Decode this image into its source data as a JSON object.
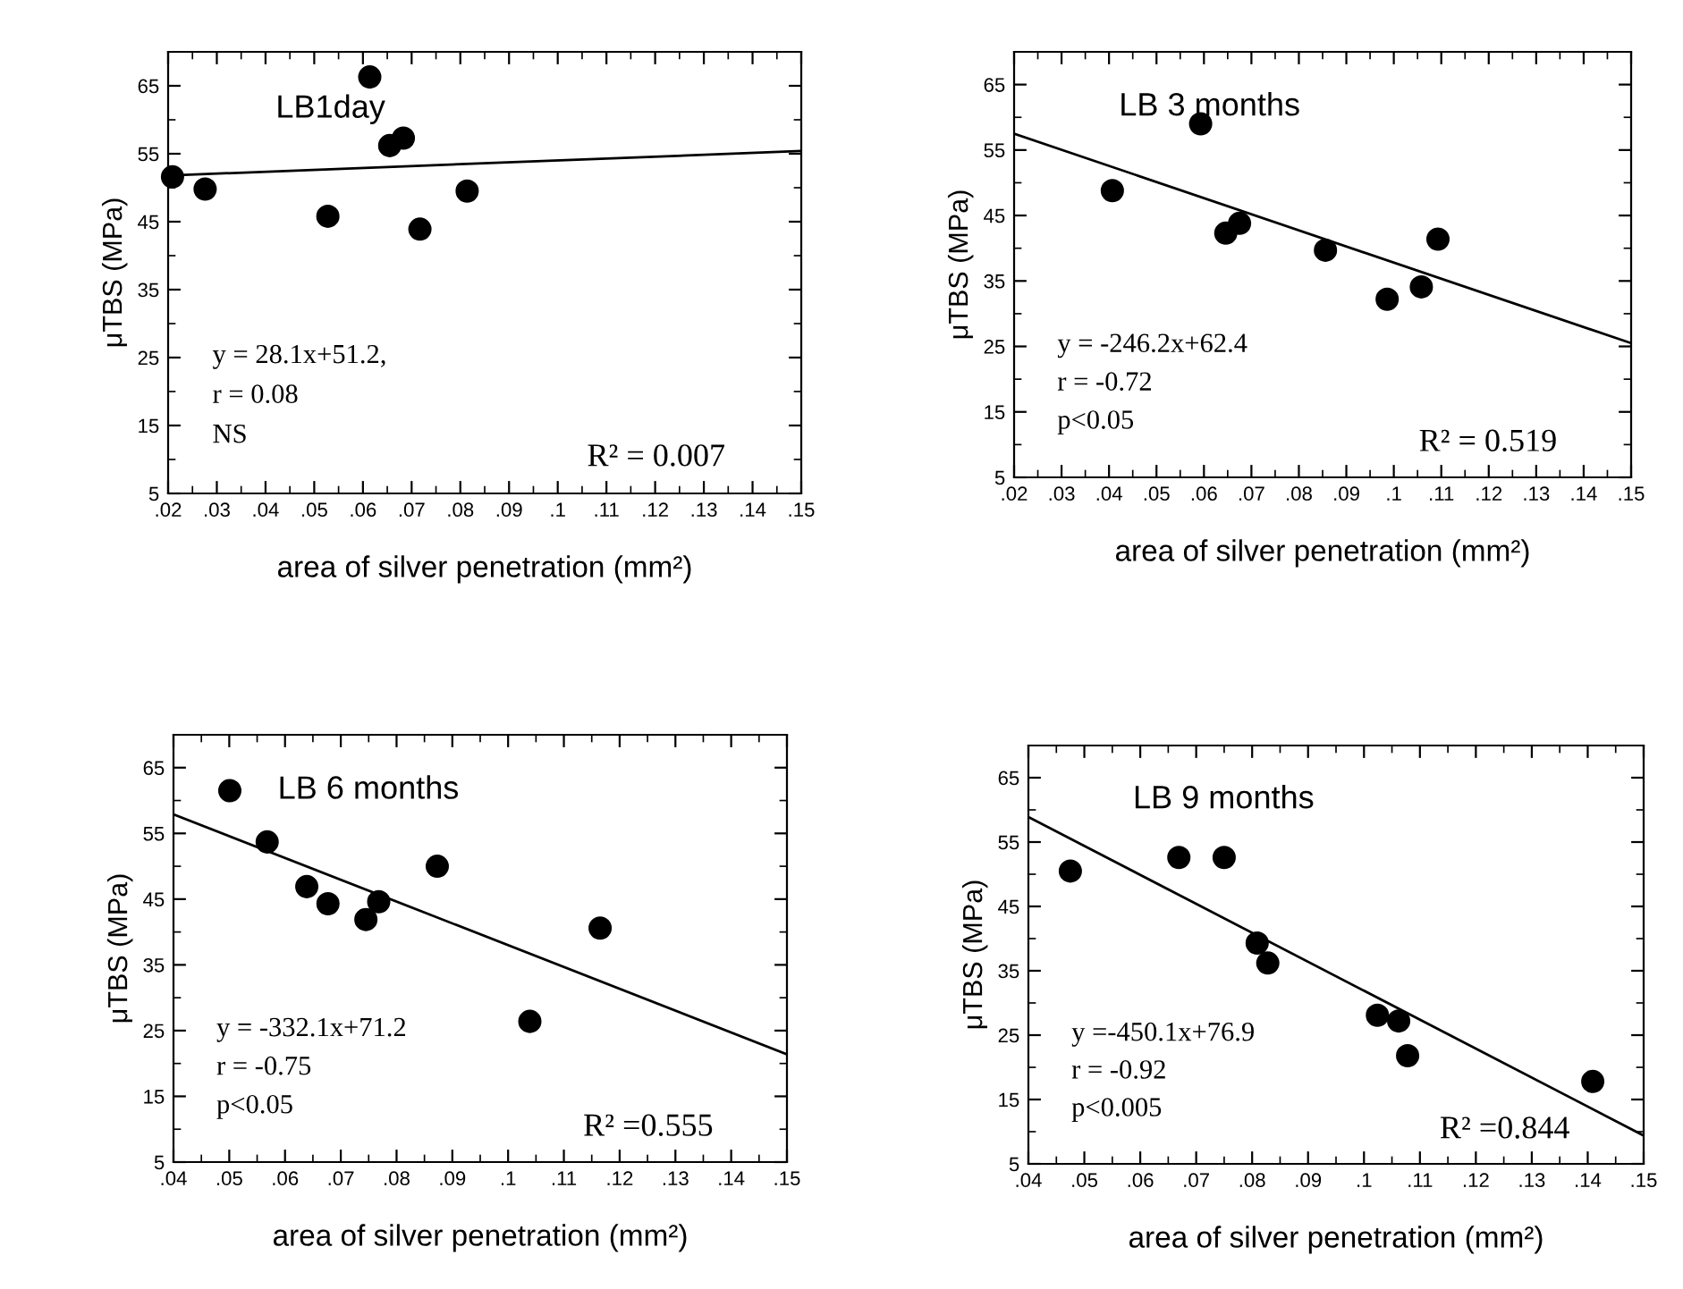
{
  "chart_data": [
    {
      "type": "scatter",
      "title": "LB1day",
      "xlabel": "area of silver penetration (mm²)",
      "ylabel": "μTBS (MPa)",
      "xlim": [
        0.02,
        0.15
      ],
      "ylim": [
        5,
        70
      ],
      "xticks": [
        {
          "value": 0.02,
          "label": ".02"
        },
        {
          "value": 0.03,
          "label": ".03"
        },
        {
          "value": 0.04,
          "label": ".04"
        },
        {
          "value": 0.05,
          "label": ".05"
        },
        {
          "value": 0.06,
          "label": ".06"
        },
        {
          "value": 0.07,
          "label": ".07"
        },
        {
          "value": 0.08,
          "label": ".08"
        },
        {
          "value": 0.09,
          "label": ".09"
        },
        {
          "value": 0.1,
          "label": ".1"
        },
        {
          "value": 0.11,
          "label": ".11"
        },
        {
          "value": 0.12,
          "label": ".12"
        },
        {
          "value": 0.13,
          "label": ".13"
        },
        {
          "value": 0.14,
          "label": ".14"
        },
        {
          "value": 0.15,
          "label": ".15"
        }
      ],
      "yticks": [
        5,
        15,
        25,
        35,
        45,
        55,
        65
      ],
      "grid": false,
      "legend": false,
      "series": [
        {
          "marker": "circle",
          "color": "#000000",
          "x": [
            0.0209,
            0.0276,
            0.0528,
            0.0614,
            0.0655,
            0.0683,
            0.0717,
            0.0814
          ],
          "values": [
            51.6,
            49.8,
            45.8,
            66.3,
            56.2,
            57.3,
            43.9,
            49.5
          ]
        },
        {
          "type": "line",
          "color": "#000000",
          "x": [
            0.02,
            0.15
          ],
          "values": [
            51.8,
            55.4
          ]
        }
      ],
      "annotations": [
        "y = 28.1x+51.2,",
        "r = 0.08",
        "NS",
        "R² = 0.007"
      ]
    },
    {
      "type": "scatter",
      "title": "LB 3 months",
      "xlabel": "area of silver penetration (mm²)",
      "ylabel": "μTBS (MPa)",
      "xlim": [
        0.02,
        0.15
      ],
      "ylim": [
        5,
        70
      ],
      "xticks": [
        {
          "value": 0.02,
          "label": ".02"
        },
        {
          "value": 0.03,
          "label": ".03"
        },
        {
          "value": 0.04,
          "label": ".04"
        },
        {
          "value": 0.05,
          "label": ".05"
        },
        {
          "value": 0.06,
          "label": ".06"
        },
        {
          "value": 0.07,
          "label": ".07"
        },
        {
          "value": 0.08,
          "label": ".08"
        },
        {
          "value": 0.09,
          "label": ".09"
        },
        {
          "value": 0.1,
          "label": ".1"
        },
        {
          "value": 0.11,
          "label": ".11"
        },
        {
          "value": 0.12,
          "label": ".12"
        },
        {
          "value": 0.13,
          "label": ".13"
        },
        {
          "value": 0.14,
          "label": ".14"
        },
        {
          "value": 0.15,
          "label": ".15"
        }
      ],
      "yticks": [
        5,
        15,
        25,
        35,
        45,
        55,
        65
      ],
      "grid": false,
      "legend": false,
      "series": [
        {
          "marker": "circle",
          "color": "#000000",
          "x": [
            0.0407,
            0.0593,
            0.0646,
            0.0675,
            0.0856,
            0.0986,
            0.1058,
            0.1093
          ],
          "values": [
            48.8,
            59.0,
            42.3,
            43.8,
            39.7,
            32.2,
            34.1,
            41.4
          ]
        },
        {
          "type": "line",
          "color": "#000000",
          "x": [
            0.02,
            0.15
          ],
          "values": [
            57.5,
            25.5
          ]
        }
      ],
      "annotations": [
        "y = -246.2x+62.4",
        "r = -0.72",
        "p<0.05",
        "R² = 0.519"
      ]
    },
    {
      "type": "scatter",
      "title": "LB 6 months",
      "xlabel": "area of silver penetration (mm²)",
      "ylabel": "μTBS (MPa)",
      "xlim": [
        0.04,
        0.15
      ],
      "ylim": [
        5,
        70
      ],
      "xticks": [
        {
          "value": 0.04,
          "label": ".04"
        },
        {
          "value": 0.05,
          "label": ".05"
        },
        {
          "value": 0.06,
          "label": ".06"
        },
        {
          "value": 0.07,
          "label": ".07"
        },
        {
          "value": 0.08,
          "label": ".08"
        },
        {
          "value": 0.09,
          "label": ".09"
        },
        {
          "value": 0.1,
          "label": ".1"
        },
        {
          "value": 0.11,
          "label": ".11"
        },
        {
          "value": 0.12,
          "label": ".12"
        },
        {
          "value": 0.13,
          "label": ".13"
        },
        {
          "value": 0.14,
          "label": ".14"
        },
        {
          "value": 0.15,
          "label": ".15"
        }
      ],
      "yticks": [
        5,
        15,
        25,
        35,
        45,
        55,
        65
      ],
      "grid": false,
      "legend": false,
      "series": [
        {
          "marker": "circle",
          "color": "#000000",
          "x": [
            0.0501,
            0.0568,
            0.0639,
            0.0677,
            0.0745,
            0.0768,
            0.0873,
            0.1039,
            0.1165
          ],
          "values": [
            61.5,
            53.7,
            46.9,
            44.3,
            41.9,
            44.6,
            50.0,
            26.4,
            40.6
          ]
        },
        {
          "type": "line",
          "color": "#000000",
          "x": [
            0.04,
            0.15
          ],
          "values": [
            57.9,
            21.4
          ]
        }
      ],
      "annotations": [
        "y = -332.1x+71.2",
        "r = -0.75",
        "p<0.05",
        "R² =0.555"
      ]
    },
    {
      "type": "scatter",
      "title": "LB 9 months",
      "xlabel": "area of silver penetration (mm²)",
      "ylabel": "μTBS (MPa)",
      "xlim": [
        0.04,
        0.15
      ],
      "ylim": [
        5,
        70
      ],
      "xticks": [
        {
          "value": 0.04,
          "label": ".04"
        },
        {
          "value": 0.05,
          "label": ".05"
        },
        {
          "value": 0.06,
          "label": ".06"
        },
        {
          "value": 0.07,
          "label": ".07"
        },
        {
          "value": 0.08,
          "label": ".08"
        },
        {
          "value": 0.09,
          "label": ".09"
        },
        {
          "value": 0.1,
          "label": ".1"
        },
        {
          "value": 0.11,
          "label": ".11"
        },
        {
          "value": 0.12,
          "label": ".12"
        },
        {
          "value": 0.13,
          "label": ".13"
        },
        {
          "value": 0.14,
          "label": ".14"
        },
        {
          "value": 0.15,
          "label": ".15"
        }
      ],
      "yticks": [
        5,
        15,
        25,
        35,
        45,
        55,
        65
      ],
      "grid": false,
      "legend": false,
      "series": [
        {
          "marker": "circle",
          "color": "#000000",
          "x": [
            0.0475,
            0.0669,
            0.075,
            0.0809,
            0.0828,
            0.1024,
            0.1062,
            0.1078,
            0.1409
          ],
          "values": [
            50.5,
            52.6,
            52.6,
            39.3,
            36.2,
            28.1,
            27.2,
            21.8,
            17.8
          ]
        },
        {
          "type": "line",
          "color": "#000000",
          "x": [
            0.04,
            0.15
          ],
          "values": [
            58.9,
            9.4
          ]
        }
      ],
      "annotations": [
        "y =-450.1x+76.9",
        "r = -0.92",
        "p<0.005",
        "R² =0.844"
      ]
    }
  ]
}
